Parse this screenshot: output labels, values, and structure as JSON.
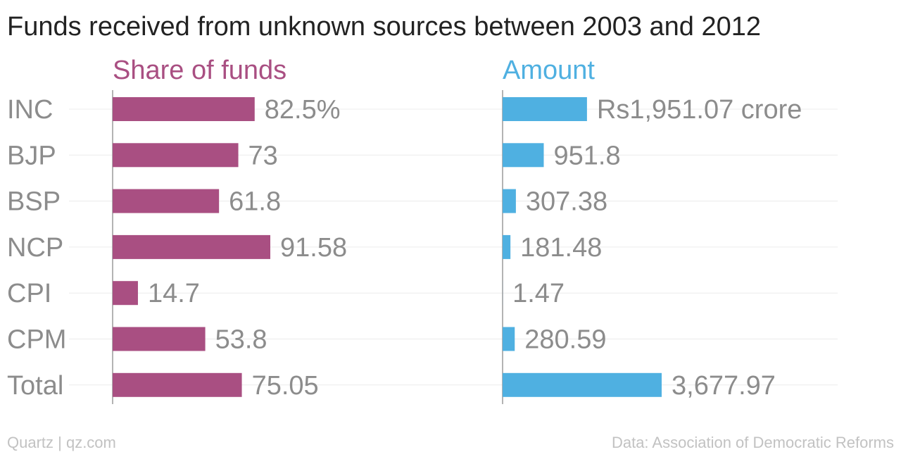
{
  "chart_data": {
    "type": "bar",
    "orientation": "horizontal",
    "title": "Funds received from unknown sources between 2003 and 2012",
    "categories": [
      "INC",
      "BJP",
      "BSP",
      "NCP",
      "CPI",
      "CPM",
      "Total"
    ],
    "panels": [
      {
        "name": "Share of funds",
        "color": "#a94f82",
        "values": [
          82.5,
          73,
          61.8,
          91.58,
          14.7,
          53.8,
          75.05
        ],
        "labels": [
          "82.5%",
          "73",
          "61.8",
          "91.58",
          "14.7",
          "53.8",
          "75.05"
        ],
        "xlim": [
          0,
          100
        ]
      },
      {
        "name": "Amount",
        "color": "#4fb0e1",
        "values": [
          1951.07,
          951.8,
          307.38,
          181.48,
          1.47,
          280.59,
          3677.97
        ],
        "labels": [
          "Rs1,951.07 crore",
          "951.8",
          "307.38",
          "181.48",
          "1.47",
          "280.59",
          "3,677.97"
        ],
        "xlim": [
          0,
          3700
        ]
      }
    ],
    "grid": true,
    "legend": "none"
  },
  "footer": {
    "credit": "Quartz | qz.com",
    "source": "Data: Association of Democratic Reforms"
  },
  "colors": {
    "title": "#222222",
    "text": "#8c8c8c",
    "gridline": "#ececec",
    "axis": "#9a9a9a",
    "footer": "#c2c2c2"
  }
}
